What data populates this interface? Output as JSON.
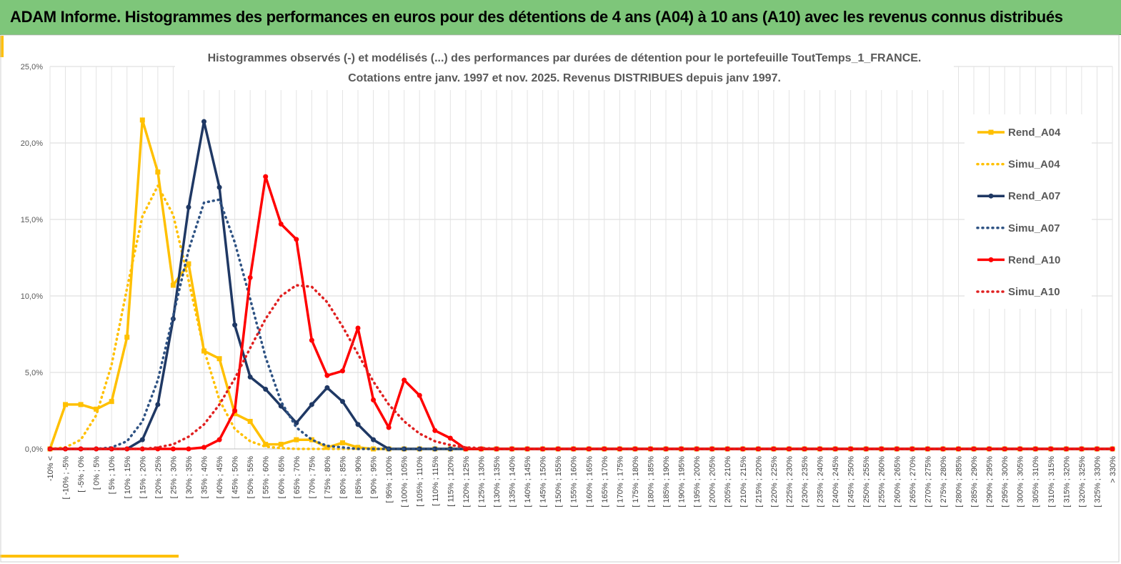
{
  "header": {
    "title": "ADAM Informe. Histogrammes des performances en euros pour des détentions de 4 ans (A04) à 10 ans (A10) avec les revenus connus distribués"
  },
  "chart_data": {
    "type": "line",
    "title": [
      "Histogrammes observés (-) et modélisés (...) des performances par durées de détention pour le portefeuille ToutTemps_1_FRANCE.",
      "Cotations entre janv. 1997 et nov. 2025. Revenus DISTRIBUES depuis janv 1997."
    ],
    "categories": [
      "-10% <",
      "[ -10% ; -5%",
      "[ -5% ; 0%",
      "[ 0% ; 5%",
      "[ 5% ; 10%",
      "[ 10% ; 15%",
      "[ 15% ; 20%",
      "[ 20% ; 25%",
      "[ 25% ; 30%",
      "[ 30% ; 35%",
      "[ 35% ; 40%",
      "[ 40% ; 45%",
      "[ 45% ; 50%",
      "[ 50% ; 55%",
      "[ 55% ; 60%",
      "[ 60% ; 65%",
      "[ 65% ; 70%",
      "[ 70% ; 75%",
      "[ 75% ; 80%",
      "[ 80% ; 85%",
      "[ 85% ; 90%",
      "[ 90% ; 95%",
      "[ 95% ; 100%",
      "[ 100% ; 105%",
      "[ 105% ; 110%",
      "[ 110% ; 115%",
      "[ 115% ; 120%",
      "[ 120% ; 125%",
      "[ 125% ; 130%",
      "[ 130% ; 135%",
      "[ 135% ; 140%",
      "[ 140% ; 145%",
      "[ 145% ; 150%",
      "[ 150% ; 155%",
      "[ 155% ; 160%",
      "[ 160% ; 165%",
      "[ 165% ; 170%",
      "[ 170% ; 175%",
      "[ 175% ; 180%",
      "[ 180% ; 185%",
      "[ 185% ; 190%",
      "[ 190% ; 195%",
      "[ 195% ; 200%",
      "[ 200% ; 205%",
      "[ 205% ; 210%",
      "[ 210% ; 215%",
      "[ 215% ; 220%",
      "[ 220% ; 225%",
      "[ 225% ; 230%",
      "[ 230% ; 235%",
      "[ 235% ; 240%",
      "[ 240% ; 245%",
      "[ 245% ; 250%",
      "[ 250% ; 255%",
      "[ 255% ; 260%",
      "[ 260% ; 265%",
      "[ 265% ; 270%",
      "[ 270% ; 275%",
      "[ 275% ; 280%",
      "[ 280% ; 285%",
      "[ 285% ; 290%",
      "[ 290% ; 295%",
      "[ 295% ; 300%",
      "[ 300% ; 305%",
      "[ 305% ; 310%",
      "[ 310% ; 315%",
      "[ 315% ; 320%",
      "[ 320% ; 325%",
      "[ 325% ; 330%",
      "> 330%"
    ],
    "series": [
      {
        "name": "Rend_A04",
        "color": "#ffc000",
        "style": "solid",
        "marker": "square",
        "values": [
          0,
          2.9,
          2.9,
          2.6,
          3.1,
          7.3,
          21.5,
          18.1,
          10.7,
          12.1,
          6.4,
          5.9,
          2.3,
          1.8,
          0.3,
          0.3,
          0.6,
          0.6,
          0.1,
          0.4,
          0.1,
          0,
          0,
          0,
          0,
          0,
          0,
          0,
          0,
          0,
          0,
          0,
          0,
          0,
          0,
          0,
          0,
          0,
          0,
          0,
          0,
          0,
          0,
          0,
          0,
          0,
          0,
          0,
          0,
          0,
          0,
          0,
          0,
          0,
          0,
          0,
          0,
          0,
          0,
          0,
          0,
          0,
          0,
          0,
          0,
          0,
          0,
          0,
          0,
          0
        ]
      },
      {
        "name": "Simu_A04",
        "color": "#ffc000",
        "style": "dotted",
        "marker": "none",
        "values": [
          0,
          0.1,
          0.6,
          2.2,
          5.5,
          10.5,
          15.2,
          17.2,
          15.3,
          11,
          6.5,
          3.2,
          1.3,
          0.5,
          0.15,
          0.05,
          0,
          0,
          0,
          0,
          0,
          0,
          0,
          0,
          0,
          0,
          0,
          0,
          0,
          0,
          0,
          0,
          0,
          0,
          0,
          0,
          0,
          0,
          0,
          0,
          0,
          0,
          0,
          0,
          0,
          0,
          0,
          0,
          0,
          0,
          0,
          0,
          0,
          0,
          0,
          0,
          0,
          0,
          0,
          0,
          0,
          0,
          0,
          0,
          0,
          0,
          0,
          0,
          0,
          0
        ]
      },
      {
        "name": "Rend_A07",
        "color": "#1f3864",
        "style": "solid",
        "marker": "circle",
        "values": [
          0,
          0,
          0,
          0,
          0,
          0,
          0.6,
          2.9,
          8.5,
          15.8,
          21.4,
          17.1,
          8.1,
          4.7,
          3.9,
          2.8,
          1.7,
          2.9,
          4.0,
          3.1,
          1.6,
          0.6,
          0,
          0,
          0,
          0,
          0,
          0,
          0,
          0,
          0,
          0,
          0,
          0,
          0,
          0,
          0,
          0,
          0,
          0,
          0,
          0,
          0,
          0,
          0,
          0,
          0,
          0,
          0,
          0,
          0,
          0,
          0,
          0,
          0,
          0,
          0,
          0,
          0,
          0,
          0,
          0,
          0,
          0,
          0,
          0,
          0,
          0,
          0,
          0
        ]
      },
      {
        "name": "Simu_A07",
        "color": "#2e5283",
        "style": "dotted",
        "marker": "none",
        "values": [
          0,
          0,
          0,
          0,
          0.1,
          0.5,
          1.8,
          4.5,
          8.7,
          13,
          16.1,
          16.3,
          13.5,
          9.8,
          6,
          3.1,
          1.4,
          0.6,
          0.2,
          0.1,
          0,
          0,
          0,
          0,
          0,
          0,
          0,
          0,
          0,
          0,
          0,
          0,
          0,
          0,
          0,
          0,
          0,
          0,
          0,
          0,
          0,
          0,
          0,
          0,
          0,
          0,
          0,
          0,
          0,
          0,
          0,
          0,
          0,
          0,
          0,
          0,
          0,
          0,
          0,
          0,
          0,
          0,
          0,
          0,
          0,
          0,
          0,
          0,
          0,
          0
        ]
      },
      {
        "name": "Rend_A10",
        "color": "#ff0000",
        "style": "solid",
        "marker": "circle",
        "values": [
          0,
          0,
          0,
          0,
          0,
          0,
          0,
          0,
          0,
          0,
          0.1,
          0.6,
          2.5,
          11.2,
          17.8,
          14.7,
          13.7,
          7.1,
          4.8,
          5.1,
          7.9,
          3.2,
          1.4,
          4.5,
          3.5,
          1.2,
          0.7,
          0,
          0,
          0,
          0,
          0,
          0,
          0,
          0,
          0,
          0,
          0,
          0,
          0,
          0,
          0,
          0,
          0,
          0,
          0,
          0,
          0,
          0,
          0,
          0,
          0,
          0,
          0,
          0,
          0,
          0,
          0,
          0,
          0,
          0,
          0,
          0,
          0,
          0,
          0,
          0,
          0,
          0,
          0
        ]
      },
      {
        "name": "Simu_A10",
        "color": "#e02020",
        "style": "dotted",
        "marker": "none",
        "values": [
          0,
          0,
          0,
          0,
          0,
          0,
          0,
          0.1,
          0.3,
          0.8,
          1.6,
          2.9,
          4.6,
          6.6,
          8.5,
          10,
          10.7,
          10.6,
          9.6,
          8,
          6.2,
          4.4,
          2.9,
          1.8,
          1,
          0.5,
          0.25,
          0.1,
          0.05,
          0.02,
          0,
          0,
          0,
          0,
          0,
          0,
          0,
          0,
          0,
          0,
          0,
          0,
          0,
          0,
          0,
          0,
          0,
          0,
          0,
          0,
          0,
          0,
          0,
          0,
          0,
          0,
          0,
          0,
          0,
          0,
          0,
          0,
          0,
          0,
          0,
          0,
          0,
          0,
          0,
          0
        ]
      }
    ],
    "ylim": [
      0,
      25
    ],
    "yticks": [
      {
        "value": 0,
        "label": "0,0%"
      },
      {
        "value": 5,
        "label": "5,0%"
      },
      {
        "value": 10,
        "label": "10,0%"
      },
      {
        "value": 15,
        "label": "15,0%"
      },
      {
        "value": 20,
        "label": "20,0%"
      },
      {
        "value": 25,
        "label": "25,0%"
      }
    ],
    "grid": true,
    "legend": "right"
  }
}
